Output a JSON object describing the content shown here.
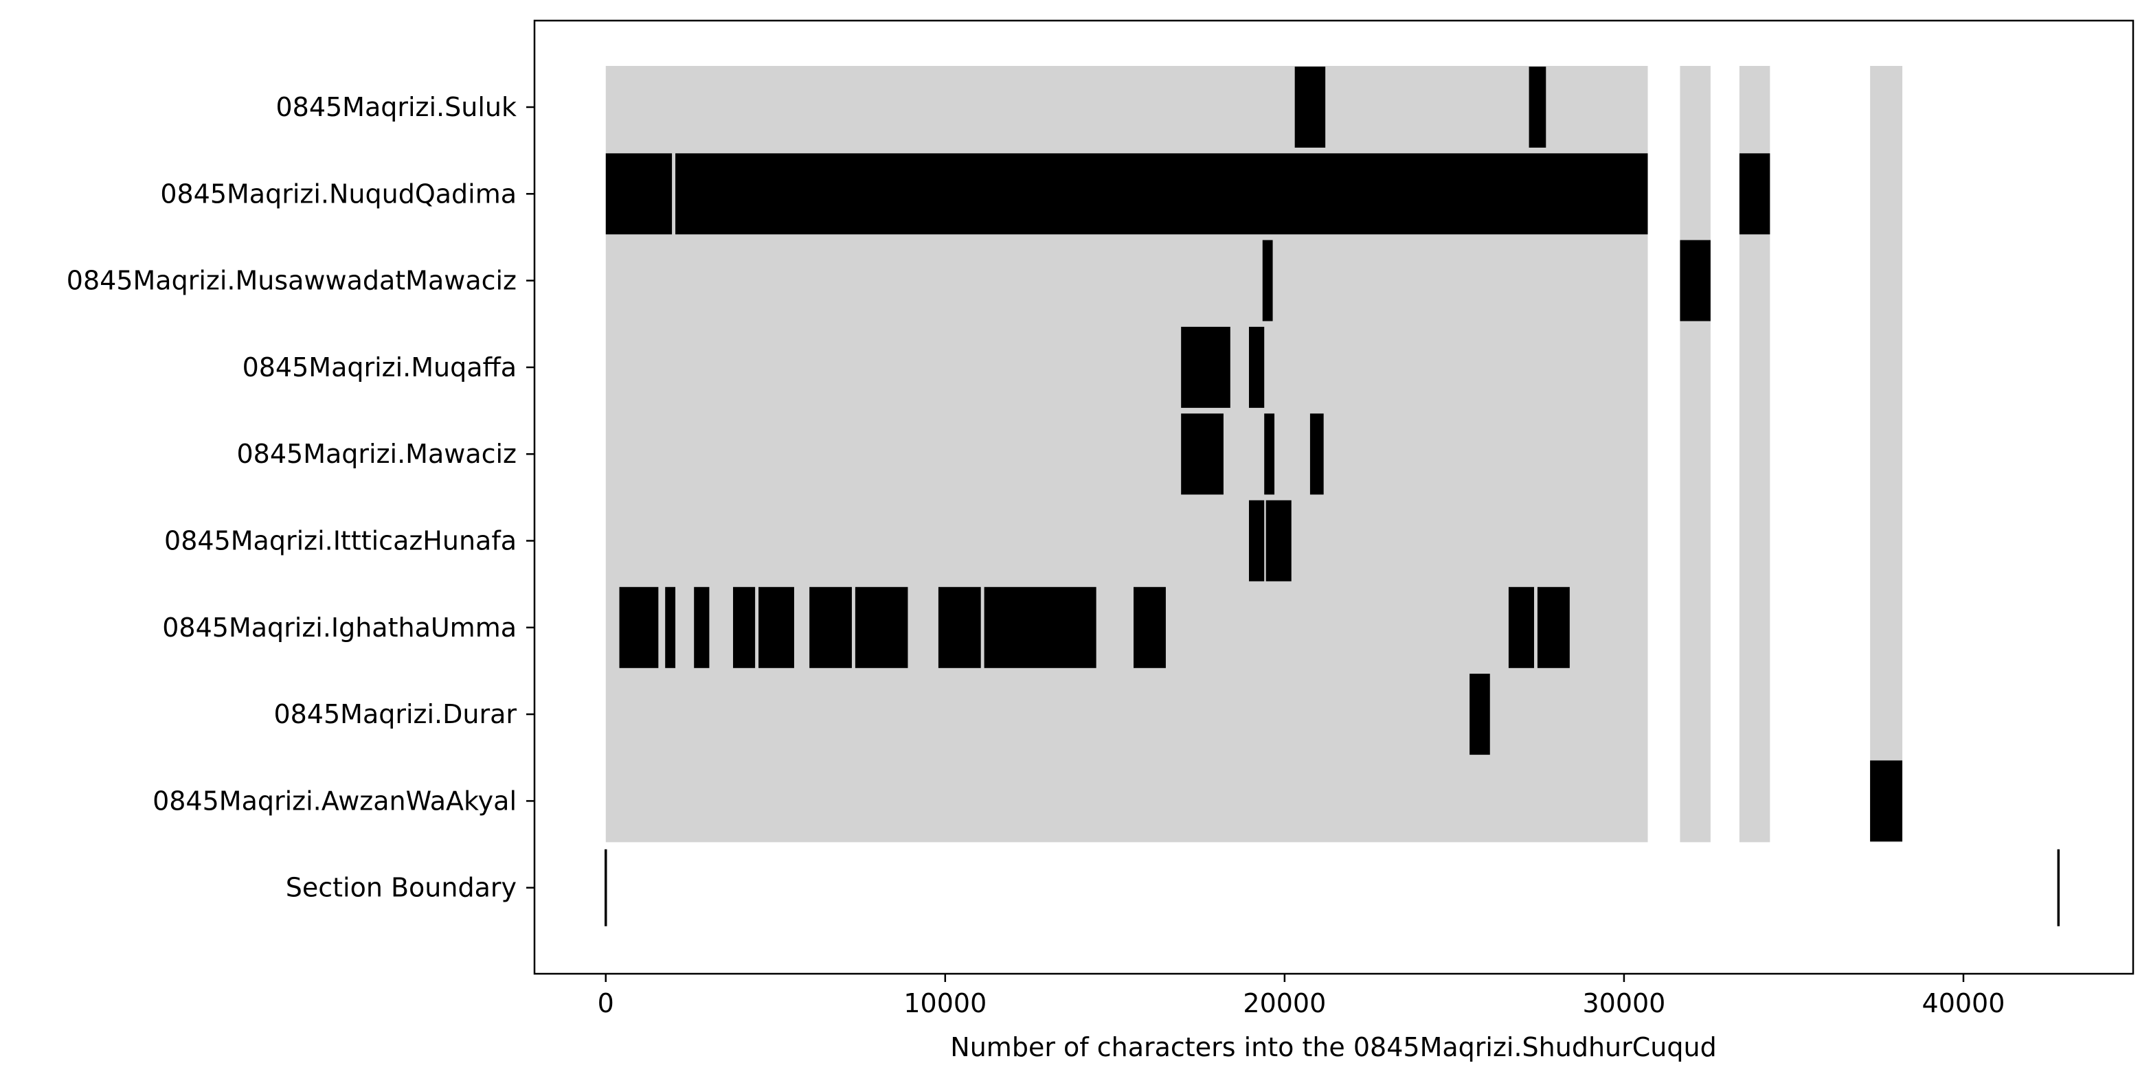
{
  "chart_data": {
    "type": "timeline",
    "title": "",
    "xlabel": "Number of characters into the 0845Maqrizi.ShudhurCuqud",
    "ylabel": "",
    "xlim": [
      -2100,
      45000
    ],
    "xticks": [
      0,
      10000,
      20000,
      30000,
      40000
    ],
    "xtick_labels": [
      "0",
      "10000",
      "20000",
      "30000",
      "40000"
    ],
    "grid": false,
    "legend": "none",
    "colors": {
      "background_band": "#d3d3d3",
      "match": "#000000",
      "axes": "#000000"
    },
    "categories": [
      "0845Maqrizi.Suluk",
      "0845Maqrizi.NuqudQadima",
      "0845Maqrizi.MusawwadatMawaciz",
      "0845Maqrizi.Muqaffa",
      "0845Maqrizi.Mawaciz",
      "0845Maqrizi.IttticazHunafa",
      "0845Maqrizi.IghathaUmma",
      "0845Maqrizi.Durar",
      "0845Maqrizi.AwzanWaAkyal",
      "Section Boundary"
    ],
    "background_spans": [
      [
        0,
        30700
      ],
      [
        31650,
        32550
      ],
      [
        33400,
        34300
      ],
      [
        37250,
        38200
      ]
    ],
    "matches": [
      {
        "row": "0845Maqrizi.Suluk",
        "spans": [
          [
            20300,
            21200
          ],
          [
            27200,
            27700
          ]
        ]
      },
      {
        "row": "0845Maqrizi.NuqudQadima",
        "spans": [
          [
            0,
            1950
          ],
          [
            2050,
            30700
          ],
          [
            33400,
            34300
          ]
        ]
      },
      {
        "row": "0845Maqrizi.MusawwadatMawaciz",
        "spans": [
          [
            19350,
            19650
          ],
          [
            31650,
            32550
          ]
        ]
      },
      {
        "row": "0845Maqrizi.Muqaffa",
        "spans": [
          [
            16950,
            18400
          ],
          [
            18950,
            19400
          ]
        ]
      },
      {
        "row": "0845Maqrizi.Mawaciz",
        "spans": [
          [
            16950,
            18200
          ],
          [
            19400,
            19700
          ],
          [
            20750,
            21150
          ]
        ]
      },
      {
        "row": "0845Maqrizi.IttticazHunafa",
        "spans": [
          [
            18950,
            19400
          ],
          [
            19450,
            20200
          ]
        ]
      },
      {
        "row": "0845Maqrizi.IghathaUmma",
        "spans": [
          [
            400,
            1550
          ],
          [
            1750,
            2050
          ],
          [
            2600,
            3050
          ],
          [
            3750,
            4400
          ],
          [
            4500,
            5550
          ],
          [
            6000,
            7250
          ],
          [
            7350,
            8900
          ],
          [
            9800,
            11050
          ],
          [
            11150,
            14450
          ],
          [
            15550,
            16500
          ],
          [
            26600,
            27350
          ],
          [
            27450,
            28400
          ]
        ]
      },
      {
        "row": "0845Maqrizi.Durar",
        "spans": [
          [
            25450,
            26050
          ]
        ]
      },
      {
        "row": "0845Maqrizi.AwzanWaAkyal",
        "spans": [
          [
            37250,
            38200
          ]
        ]
      }
    ],
    "section_boundaries": [
      0,
      42800
    ]
  }
}
